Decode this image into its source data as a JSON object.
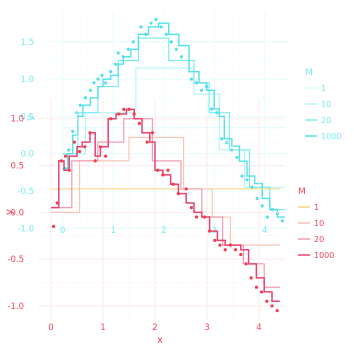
{
  "chart_data": [
    {
      "panel": "back",
      "type": "step",
      "axis_color": "#4fe3ee",
      "xlabel": "x",
      "ylabel": "y",
      "xlim": [
        -0.25,
        4.5
      ],
      "ylim": [
        -1.05,
        1.9
      ],
      "x_ticks": [
        0,
        1,
        2,
        3,
        4
      ],
      "y_ticks": [
        -1.0,
        -0.5,
        0.0,
        0.5,
        1.0,
        1.5
      ],
      "x_tick_labels": [
        "0",
        "1",
        "2",
        "3",
        "4"
      ],
      "y_tick_labels": [
        "-1.0",
        "-0.5",
        "0.0",
        "0.5",
        "1.0",
        "1.5"
      ],
      "grid": true,
      "legend": {
        "title": "M",
        "position": "right",
        "entries": [
          "1",
          "10",
          "20",
          "1000"
        ]
      },
      "points": {
        "x": [
          0.05,
          0.12,
          0.2,
          0.28,
          0.35,
          0.45,
          0.55,
          0.62,
          0.7,
          0.78,
          0.85,
          0.95,
          1.05,
          1.1,
          1.2,
          1.3,
          1.4,
          1.55,
          1.65,
          1.75,
          1.85,
          1.95,
          2.05,
          2.15,
          2.25,
          2.35,
          2.55,
          2.65,
          2.75,
          2.85,
          2.95,
          3.05,
          3.15,
          3.25,
          3.35,
          3.45,
          3.55,
          3.65,
          3.75,
          3.85,
          3.95,
          4.05,
          4.15,
          4.25,
          4.35
        ],
        "y": [
          -0.2,
          0.05,
          0.3,
          0.55,
          0.65,
          0.75,
          0.85,
          0.95,
          1.0,
          1.05,
          0.95,
          1.1,
          1.2,
          1.35,
          1.3,
          1.4,
          1.5,
          1.7,
          1.6,
          1.75,
          1.8,
          1.7,
          1.6,
          1.5,
          1.4,
          1.3,
          1.0,
          0.95,
          0.85,
          0.9,
          0.6,
          0.55,
          0.2,
          0.15,
          0.05,
          -0.05,
          -0.3,
          -0.35,
          -0.45,
          -0.6,
          -0.7,
          -0.85,
          -0.75,
          -0.8,
          -0.9
        ]
      },
      "series": [
        {
          "name": "1",
          "x": [
            0.0,
            4.4
          ],
          "y": [
            0.35,
            0.35
          ]
        },
        {
          "name": "10",
          "x": [
            0.0,
            0.45,
            1.45,
            2.6,
            3.1,
            3.6,
            4.4
          ],
          "y": [
            0.0,
            0.55,
            1.15,
            0.8,
            0.05,
            -0.45,
            -0.45
          ]
        },
        {
          "name": "20",
          "x": [
            0.0,
            0.3,
            0.7,
            1.1,
            1.5,
            2.1,
            2.6,
            2.9,
            3.3,
            3.7,
            4.1,
            4.4
          ],
          "y": [
            0.0,
            0.55,
            0.9,
            1.25,
            1.55,
            1.25,
            0.95,
            0.55,
            0.05,
            -0.45,
            -0.75,
            -0.75
          ]
        },
        {
          "name": "1000",
          "x": [
            0.0,
            0.1,
            0.2,
            0.3,
            0.4,
            0.55,
            0.7,
            0.8,
            0.95,
            1.1,
            1.2,
            1.35,
            1.5,
            1.7,
            1.9,
            2.1,
            2.3,
            2.5,
            2.7,
            2.85,
            3.0,
            3.1,
            3.2,
            3.35,
            3.5,
            3.65,
            3.8,
            3.95,
            4.1,
            4.25,
            4.4
          ],
          "y": [
            -0.2,
            0.0,
            0.25,
            0.5,
            0.65,
            0.75,
            0.9,
            1.0,
            1.05,
            1.2,
            1.3,
            1.4,
            1.6,
            1.7,
            1.75,
            1.6,
            1.45,
            1.1,
            0.95,
            0.85,
            0.6,
            0.5,
            0.2,
            0.1,
            -0.1,
            -0.3,
            -0.4,
            -0.6,
            -0.75,
            -0.85,
            -0.85
          ]
        }
      ]
    },
    {
      "panel": "front",
      "type": "step",
      "axis_color": "#f0223c",
      "xlabel": "x",
      "ylabel": "y",
      "xlim": [
        -0.25,
        4.5
      ],
      "ylim": [
        -1.15,
        1.2
      ],
      "x_ticks": [
        0,
        1,
        2,
        3,
        4
      ],
      "y_ticks": [
        -1.0,
        -0.5,
        0.0,
        0.5,
        1.0
      ],
      "x_tick_labels": [
        "0",
        "1",
        "2",
        "3",
        "4"
      ],
      "y_tick_labels": [
        "-1.0",
        "-0.5",
        "0.0",
        "0.5",
        "1.0"
      ],
      "grid": true,
      "legend": {
        "title": "M",
        "position": "right",
        "entries": [
          "1",
          "10",
          "20",
          "1000"
        ]
      },
      "points": {
        "x": [
          0.05,
          0.12,
          0.2,
          0.28,
          0.35,
          0.45,
          0.55,
          0.65,
          0.75,
          0.85,
          0.95,
          1.05,
          1.15,
          1.3,
          1.4,
          1.5,
          1.6,
          1.7,
          1.85,
          1.95,
          2.05,
          2.15,
          2.25,
          2.35,
          2.45,
          2.6,
          2.7,
          2.8,
          2.95,
          3.05,
          3.15,
          3.25,
          3.35,
          3.45,
          3.55,
          3.65,
          3.75,
          3.85,
          3.95,
          4.05,
          4.15,
          4.25,
          4.35
        ],
        "y": [
          -0.15,
          0.1,
          0.55,
          0.6,
          0.45,
          0.75,
          0.65,
          0.7,
          0.85,
          0.55,
          0.7,
          0.6,
          1.0,
          1.05,
          1.1,
          1.1,
          1.05,
          0.95,
          0.75,
          0.85,
          0.45,
          0.4,
          0.45,
          0.3,
          0.2,
          0.25,
          0.05,
          -0.05,
          -0.05,
          -0.2,
          -0.3,
          -0.35,
          -0.4,
          -0.35,
          -0.4,
          -0.45,
          -0.55,
          -0.7,
          -0.8,
          -0.85,
          -0.95,
          -1.0,
          -1.05
        ]
      },
      "series": [
        {
          "name": "1",
          "x": [
            0.0,
            4.4
          ],
          "y": [
            0.25,
            0.25
          ]
        },
        {
          "name": "10",
          "x": [
            0.0,
            0.55,
            1.5,
            2.55,
            3.1,
            3.45,
            4.4
          ],
          "y": [
            0.0,
            0.55,
            0.8,
            0.25,
            -0.05,
            -0.35,
            -0.35
          ]
        },
        {
          "name": "20",
          "x": [
            0.0,
            0.4,
            0.9,
            1.4,
            1.95,
            2.5,
            2.9,
            3.3,
            3.7,
            4.1,
            4.4
          ],
          "y": [
            0.05,
            0.55,
            0.75,
            1.0,
            0.55,
            0.25,
            -0.05,
            -0.35,
            -0.55,
            -0.8,
            -0.8
          ]
        },
        {
          "name": "1000",
          "x": [
            0.0,
            0.15,
            0.25,
            0.35,
            0.5,
            0.6,
            0.75,
            0.85,
            0.95,
            1.1,
            1.25,
            1.45,
            1.6,
            1.75,
            1.9,
            2.0,
            2.15,
            2.3,
            2.45,
            2.6,
            2.75,
            2.9,
            3.05,
            3.2,
            3.35,
            3.5,
            3.65,
            3.8,
            3.95,
            4.1,
            4.25,
            4.4
          ],
          "y": [
            0.05,
            0.55,
            0.45,
            0.6,
            0.7,
            0.75,
            0.85,
            0.6,
            0.7,
            1.0,
            1.05,
            1.1,
            1.0,
            0.85,
            0.75,
            0.45,
            0.4,
            0.3,
            0.2,
            0.1,
            0.0,
            -0.05,
            -0.2,
            -0.3,
            -0.35,
            -0.35,
            -0.4,
            -0.55,
            -0.7,
            -0.85,
            -0.95,
            -0.95
          ]
        }
      ]
    }
  ]
}
